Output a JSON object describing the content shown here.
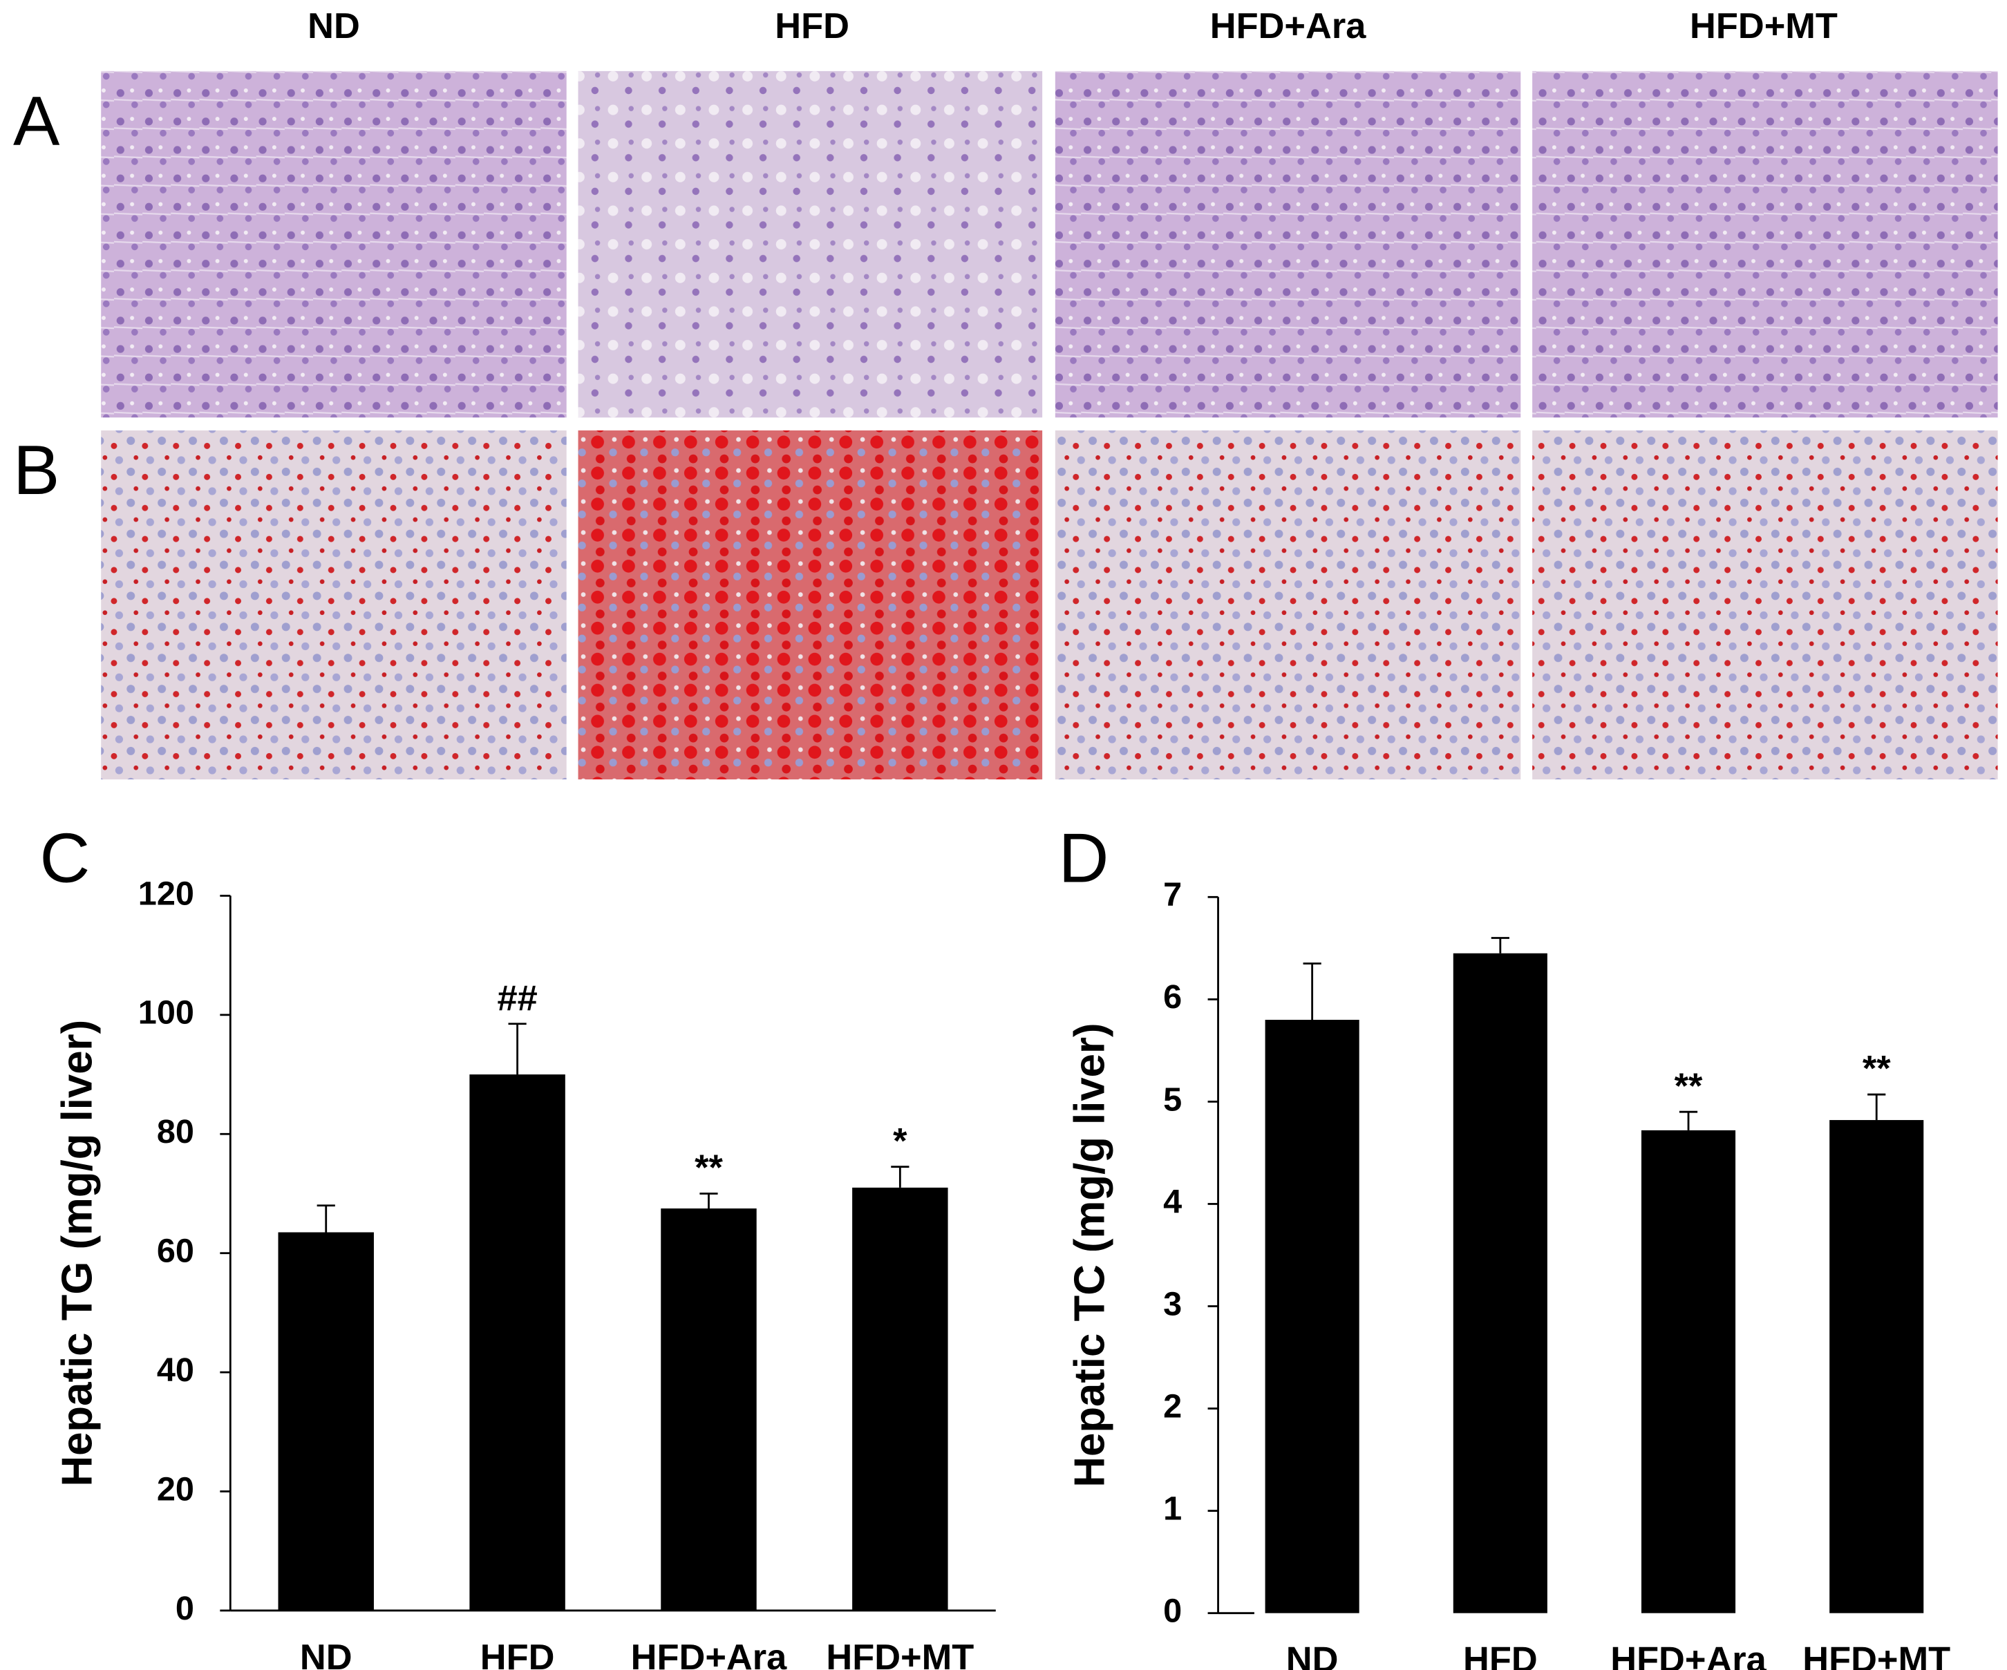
{
  "panels": {
    "columns": [
      "ND",
      "HFD",
      "HFD+Ara",
      "HFD+MT"
    ],
    "rows": [
      "A",
      "B"
    ]
  },
  "chart_data": [
    {
      "type": "bar",
      "panel_label": "C",
      "y_label": "Hepatic TG (mg/g liver)",
      "categories": [
        "ND",
        "HFD",
        "HFD+Ara",
        "HFD+MT"
      ],
      "values": [
        63.5,
        90,
        67.5,
        71
      ],
      "errors": [
        4.5,
        8.5,
        2.5,
        3.5
      ],
      "annotations": [
        null,
        "##",
        "**",
        "*"
      ],
      "color": "#000000",
      "ylim": [
        0,
        120
      ],
      "yticks": [
        0,
        20,
        40,
        60,
        80,
        100,
        120
      ]
    },
    {
      "type": "bar",
      "panel_label": "D",
      "y_label": "Hepatic TC (mg/g liver)",
      "categories": [
        "ND",
        "HFD",
        "HFD+Ara",
        "HFD+MT"
      ],
      "values": [
        5.8,
        6.45,
        4.72,
        4.82
      ],
      "errors": [
        0.55,
        0.15,
        0.18,
        0.25
      ],
      "annotations": [
        null,
        null,
        "**",
        "**"
      ],
      "color": "#000000",
      "ylim": [
        0,
        7
      ],
      "yticks": [
        0,
        1,
        2,
        3,
        4,
        5,
        6,
        7
      ]
    }
  ]
}
